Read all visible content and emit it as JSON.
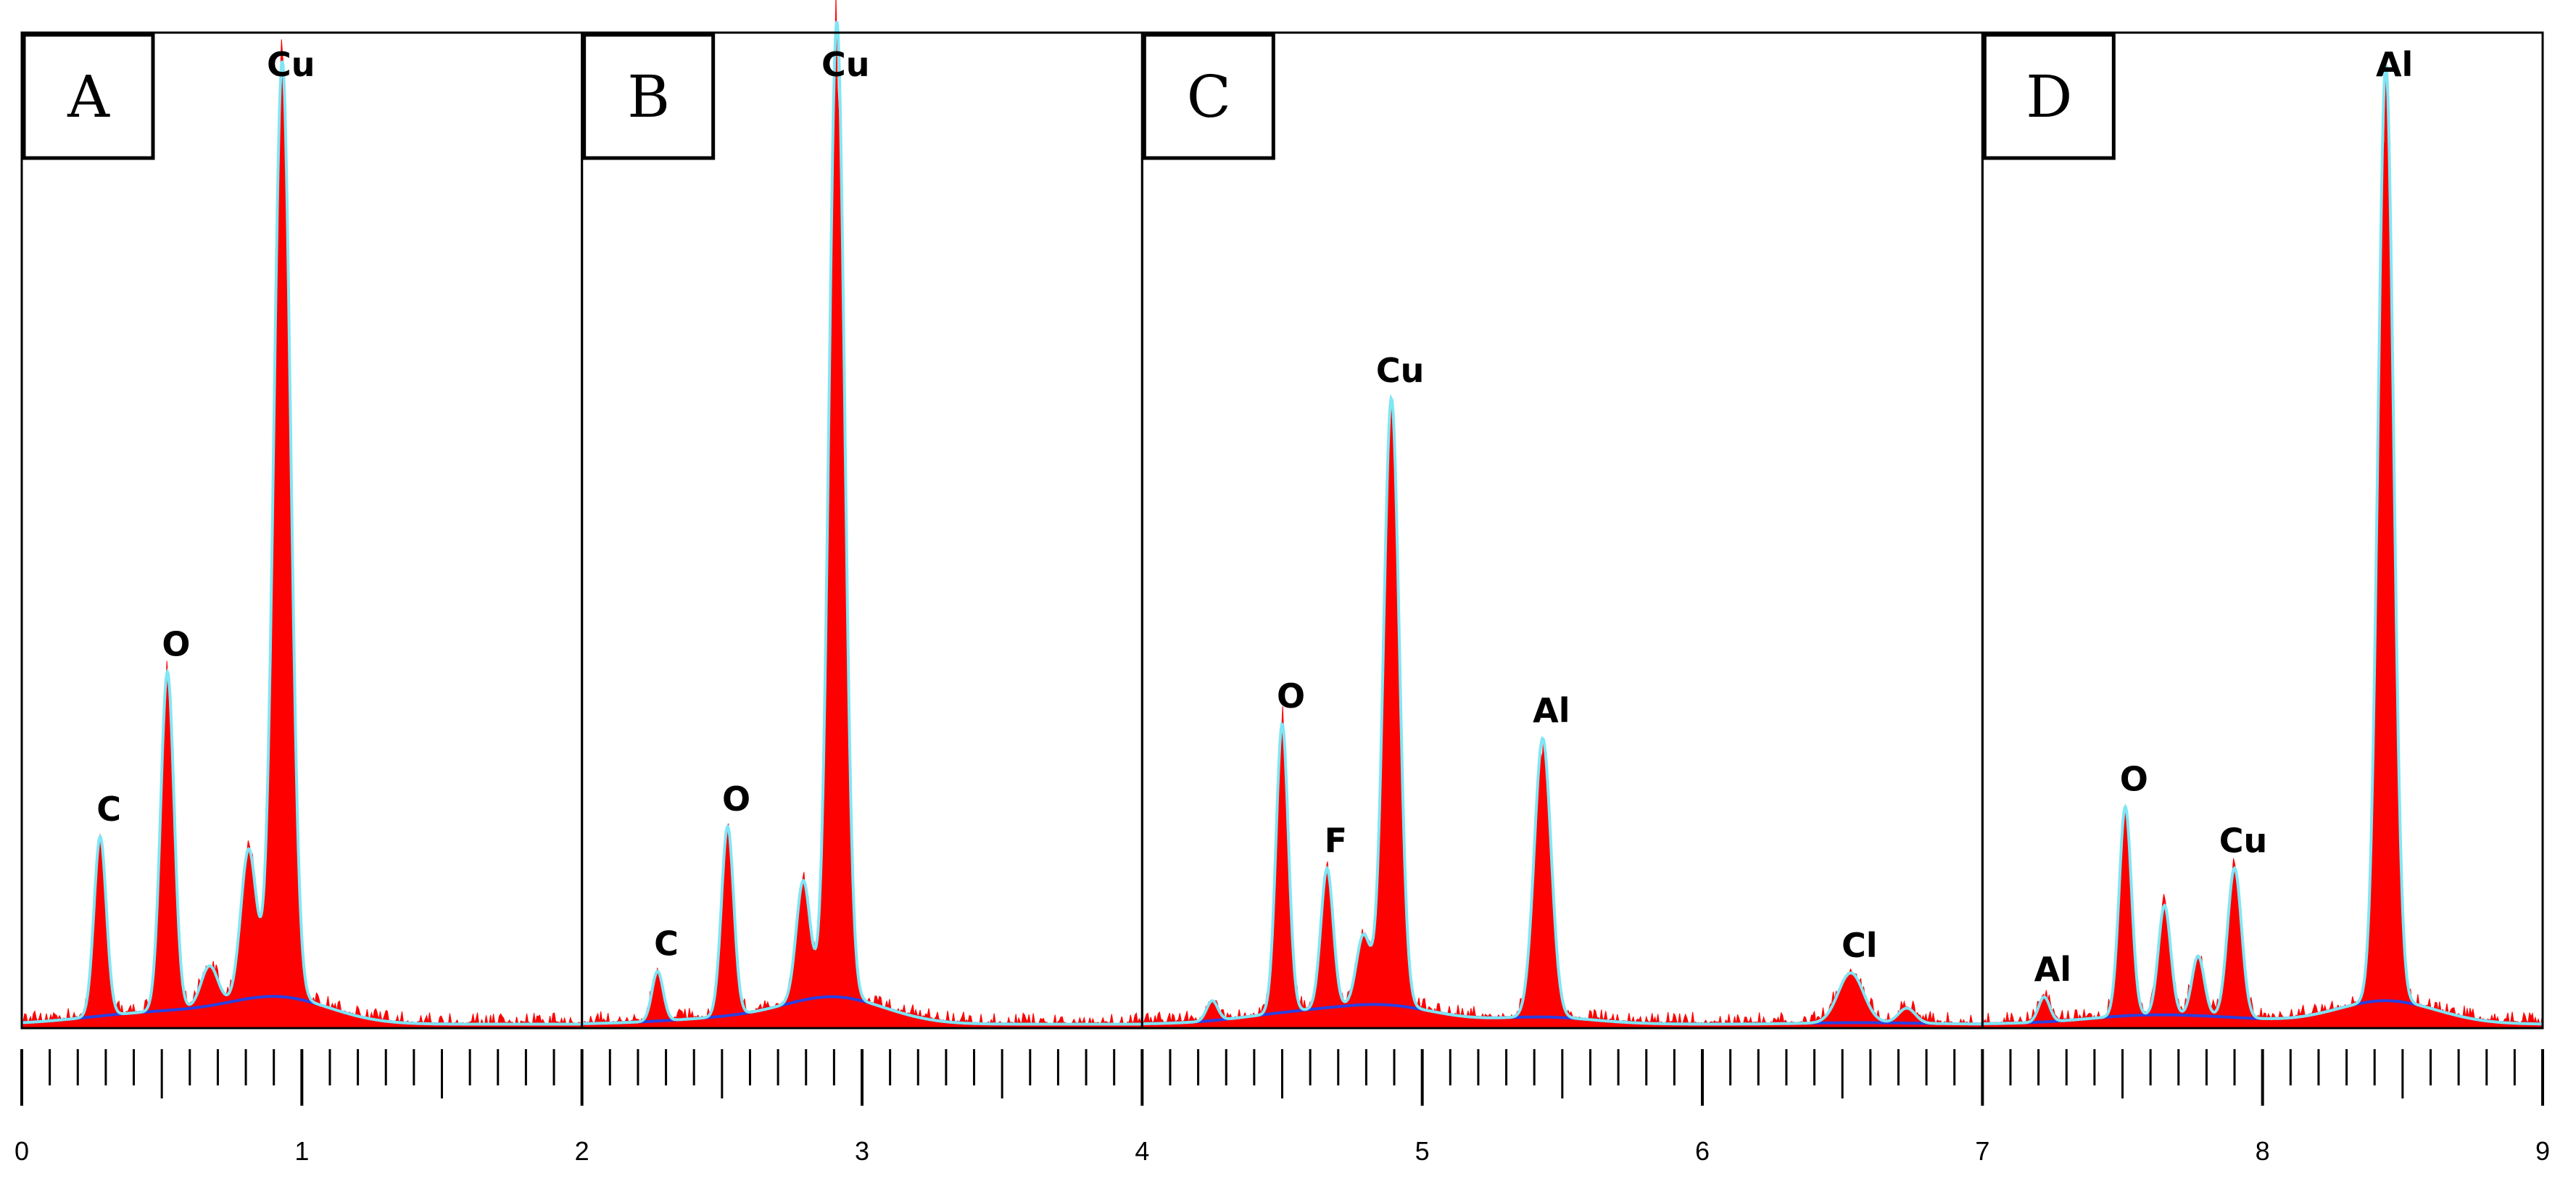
{
  "chart_data": {
    "type": "area",
    "title": "",
    "xlabel": "",
    "ylabel": "",
    "xlim": [
      0,
      9
    ],
    "ylim": [
      0,
      100
    ],
    "grid": false,
    "x_tick_labels": [
      "0",
      "1",
      "2",
      "3",
      "4",
      "5",
      "6",
      "7",
      "8",
      "9"
    ],
    "colors": {
      "spectrum": "#ff0000",
      "fit": "#7fe6f5",
      "background": "#2a3fe0",
      "frame": "#000000"
    },
    "panels": [
      {
        "label": "A",
        "x_range": [
          0,
          2
        ],
        "peaks": [
          {
            "element": "C",
            "x": 0.28,
            "height": 18,
            "width": 0.022,
            "labeled": true
          },
          {
            "element": "O",
            "x": 0.52,
            "height": 34,
            "width": 0.024,
            "labeled": true
          },
          {
            "element": "",
            "x": 0.67,
            "height": 4,
            "width": 0.03,
            "labeled": false
          },
          {
            "element": "",
            "x": 0.81,
            "height": 15,
            "width": 0.028,
            "labeled": false
          },
          {
            "element": "Cu",
            "x": 0.93,
            "height": 94,
            "width": 0.03,
            "labeled": true
          }
        ]
      },
      {
        "label": "B",
        "x_range": [
          2,
          4
        ],
        "peaks": [
          {
            "element": "C",
            "x": 2.27,
            "height": 5,
            "width": 0.02,
            "labeled": true
          },
          {
            "element": "O",
            "x": 2.52,
            "height": 19,
            "width": 0.022,
            "labeled": true
          },
          {
            "element": "",
            "x": 2.79,
            "height": 12,
            "width": 0.025,
            "labeled": false
          },
          {
            "element": "Cu",
            "x": 2.91,
            "height": 98,
            "width": 0.028,
            "labeled": true
          }
        ]
      },
      {
        "label": "C",
        "x_range": [
          4,
          7
        ],
        "peaks": [
          {
            "element": "",
            "x": 4.25,
            "height": 2,
            "width": 0.02,
            "labeled": false
          },
          {
            "element": "O",
            "x": 4.5,
            "height": 29,
            "width": 0.022,
            "labeled": true
          },
          {
            "element": "F",
            "x": 4.66,
            "height": 14,
            "width": 0.022,
            "labeled": true
          },
          {
            "element": "",
            "x": 4.79,
            "height": 7,
            "width": 0.025,
            "labeled": false
          },
          {
            "element": "Cu",
            "x": 4.89,
            "height": 61,
            "width": 0.028,
            "labeled": true
          },
          {
            "element": "Al",
            "x": 5.43,
            "height": 28,
            "width": 0.03,
            "labeled": true
          },
          {
            "element": "Cl",
            "x": 6.53,
            "height": 5,
            "width": 0.045,
            "labeled": true
          },
          {
            "element": "",
            "x": 6.73,
            "height": 1.5,
            "width": 0.03,
            "labeled": false
          }
        ]
      },
      {
        "label": "D",
        "x_range": [
          7,
          9
        ],
        "peaks": [
          {
            "element": "Al",
            "x": 7.22,
            "height": 2.5,
            "width": 0.02,
            "labeled": true
          },
          {
            "element": "O",
            "x": 7.51,
            "height": 21,
            "width": 0.022,
            "labeled": true
          },
          {
            "element": "",
            "x": 7.65,
            "height": 11,
            "width": 0.022,
            "labeled": false
          },
          {
            "element": "",
            "x": 7.77,
            "height": 6,
            "width": 0.022,
            "labeled": false
          },
          {
            "element": "Cu",
            "x": 7.9,
            "height": 15,
            "width": 0.025,
            "labeled": true
          },
          {
            "element": "Al",
            "x": 8.44,
            "height": 94,
            "width": 0.028,
            "labeled": true
          }
        ]
      }
    ]
  }
}
